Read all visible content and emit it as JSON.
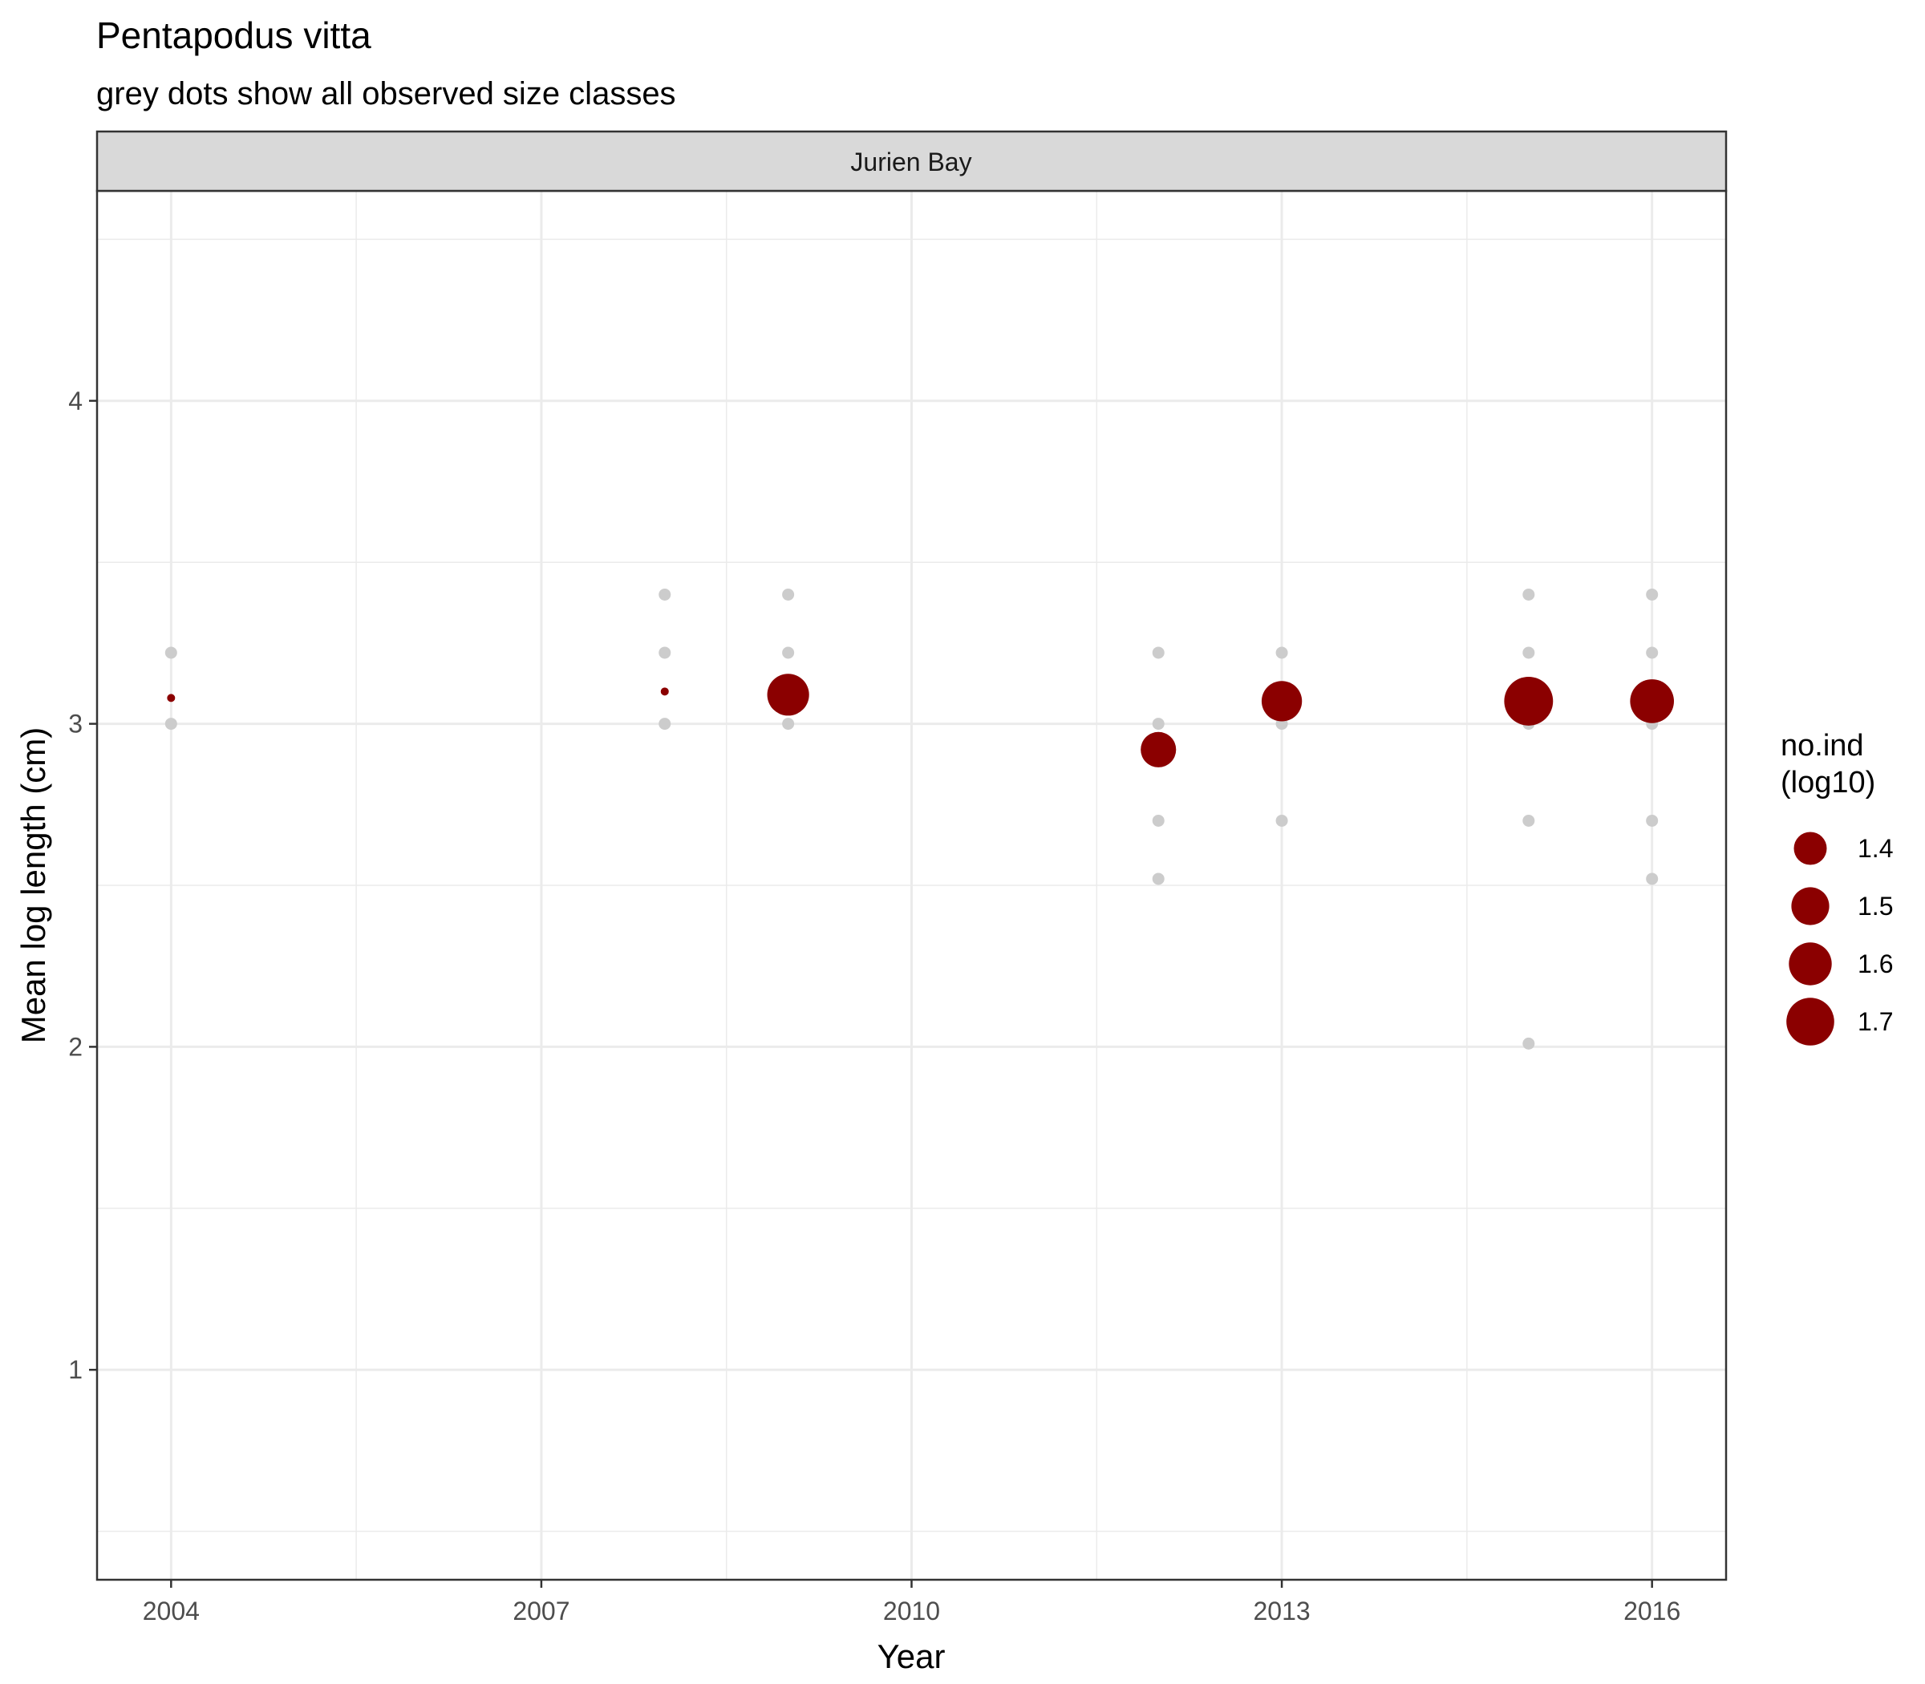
{
  "chart_data": {
    "type": "scatter",
    "title": "Pentapodus vitta",
    "subtitle": "grey dots show all observed size classes",
    "facet": "Jurien Bay",
    "xlabel": "Year",
    "ylabel": "Mean log length (cm)",
    "xlim": [
      2003.4,
      2016.6
    ],
    "ylim": [
      0.35,
      4.65
    ],
    "x_ticks": [
      2004,
      2007,
      2010,
      2013,
      2016
    ],
    "y_ticks": [
      1,
      2,
      3,
      4
    ],
    "grid": true,
    "legend_position": "right",
    "size_legend": {
      "title_lines": [
        "no.ind",
        "(log10)"
      ],
      "entries": [
        {
          "label": "1.4",
          "value": 1.4
        },
        {
          "label": "1.5",
          "value": 1.5
        },
        {
          "label": "1.6",
          "value": 1.6
        },
        {
          "label": "1.7",
          "value": 1.7
        }
      ]
    },
    "colors": {
      "mean_point": "#8B0000",
      "size_class_point": "#cccccc",
      "strip_fill": "#d9d9d9",
      "grid": "#ebebeb"
    },
    "size_classes": [
      {
        "year": 2004,
        "values": [
          3.0,
          3.22
        ]
      },
      {
        "year": 2008,
        "values": [
          3.0,
          3.22,
          3.4
        ]
      },
      {
        "year": 2009,
        "values": [
          3.0,
          3.22,
          3.4
        ]
      },
      {
        "year": 2012,
        "values": [
          2.52,
          2.7,
          3.0,
          3.22
        ]
      },
      {
        "year": 2013,
        "values": [
          2.7,
          3.0,
          3.22
        ]
      },
      {
        "year": 2015,
        "values": [
          2.01,
          2.7,
          3.0,
          3.22,
          3.4
        ]
      },
      {
        "year": 2016,
        "values": [
          2.52,
          2.7,
          3.0,
          3.22,
          3.4
        ]
      }
    ],
    "means": [
      {
        "year": 2004,
        "mean_log_length": 3.08,
        "no_ind_log10": 0.9
      },
      {
        "year": 2008,
        "mean_log_length": 3.1,
        "no_ind_log10": 0.9
      },
      {
        "year": 2009,
        "mean_log_length": 3.09,
        "no_ind_log10": 1.58
      },
      {
        "year": 2012,
        "mean_log_length": 2.92,
        "no_ind_log10": 1.45
      },
      {
        "year": 2013,
        "mean_log_length": 3.07,
        "no_ind_log10": 1.55
      },
      {
        "year": 2015,
        "mean_log_length": 3.07,
        "no_ind_log10": 1.72
      },
      {
        "year": 2016,
        "mean_log_length": 3.07,
        "no_ind_log10": 1.62
      }
    ]
  }
}
